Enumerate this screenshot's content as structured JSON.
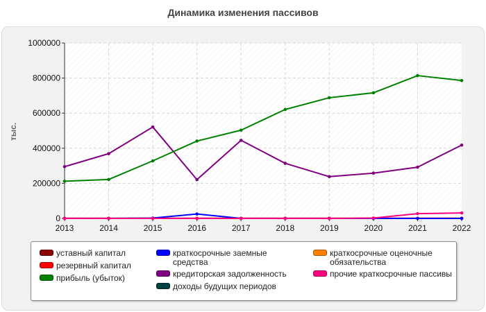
{
  "chart_data": {
    "type": "line",
    "title": "Динамика изменения пассивов",
    "ylabel": "тыс.",
    "x": [
      "2013",
      "2014",
      "2015",
      "2016",
      "2017",
      "2018",
      "2019",
      "2020",
      "2021",
      "2022"
    ],
    "ylim": [
      0,
      1000000
    ],
    "yticks": [
      "0",
      "200000",
      "400000",
      "600000",
      "800000",
      "1000000"
    ],
    "yticks_values": [
      0,
      200000,
      400000,
      600000,
      800000,
      1000000
    ],
    "grid": true,
    "legend_position": "bottom",
    "series": [
      {
        "name": "уставный капитал",
        "color": "#8b0000",
        "values": [
          500,
          500,
          500,
          500,
          500,
          500,
          500,
          500,
          500,
          500
        ]
      },
      {
        "name": "резервный капитал",
        "color": "#ff0000",
        "values": [
          500,
          500,
          500,
          500,
          500,
          500,
          500,
          500,
          500,
          500
        ]
      },
      {
        "name": "прибыль (убыток)",
        "color": "#008000",
        "values": [
          212000,
          222000,
          328000,
          441000,
          503000,
          621000,
          688000,
          716000,
          814000,
          786000
        ]
      },
      {
        "name": "краткосрочные заемные средства",
        "color": "#0000ff",
        "values": [
          0,
          0,
          2000,
          25000,
          0,
          0,
          0,
          0,
          0,
          0
        ]
      },
      {
        "name": "кредиторская задолженность",
        "color": "#800080",
        "values": [
          295000,
          369000,
          521000,
          221000,
          445000,
          314000,
          238000,
          258000,
          292000,
          418000
        ]
      },
      {
        "name": "доходы будущих периодов",
        "color": "#004040",
        "values": [
          0,
          0,
          0,
          0,
          0,
          0,
          0,
          0,
          0,
          0
        ]
      },
      {
        "name": "краткосрочные оценочные обязательства",
        "color": "#ff8000",
        "values": [
          0,
          0,
          0,
          0,
          0,
          0,
          0,
          0,
          1000,
          2000
        ]
      },
      {
        "name": "прочие краткосрочные пассивы",
        "color": "#ff0080",
        "values": [
          0,
          0,
          0,
          0,
          0,
          0,
          0,
          2000,
          27000,
          31000
        ]
      }
    ]
  }
}
